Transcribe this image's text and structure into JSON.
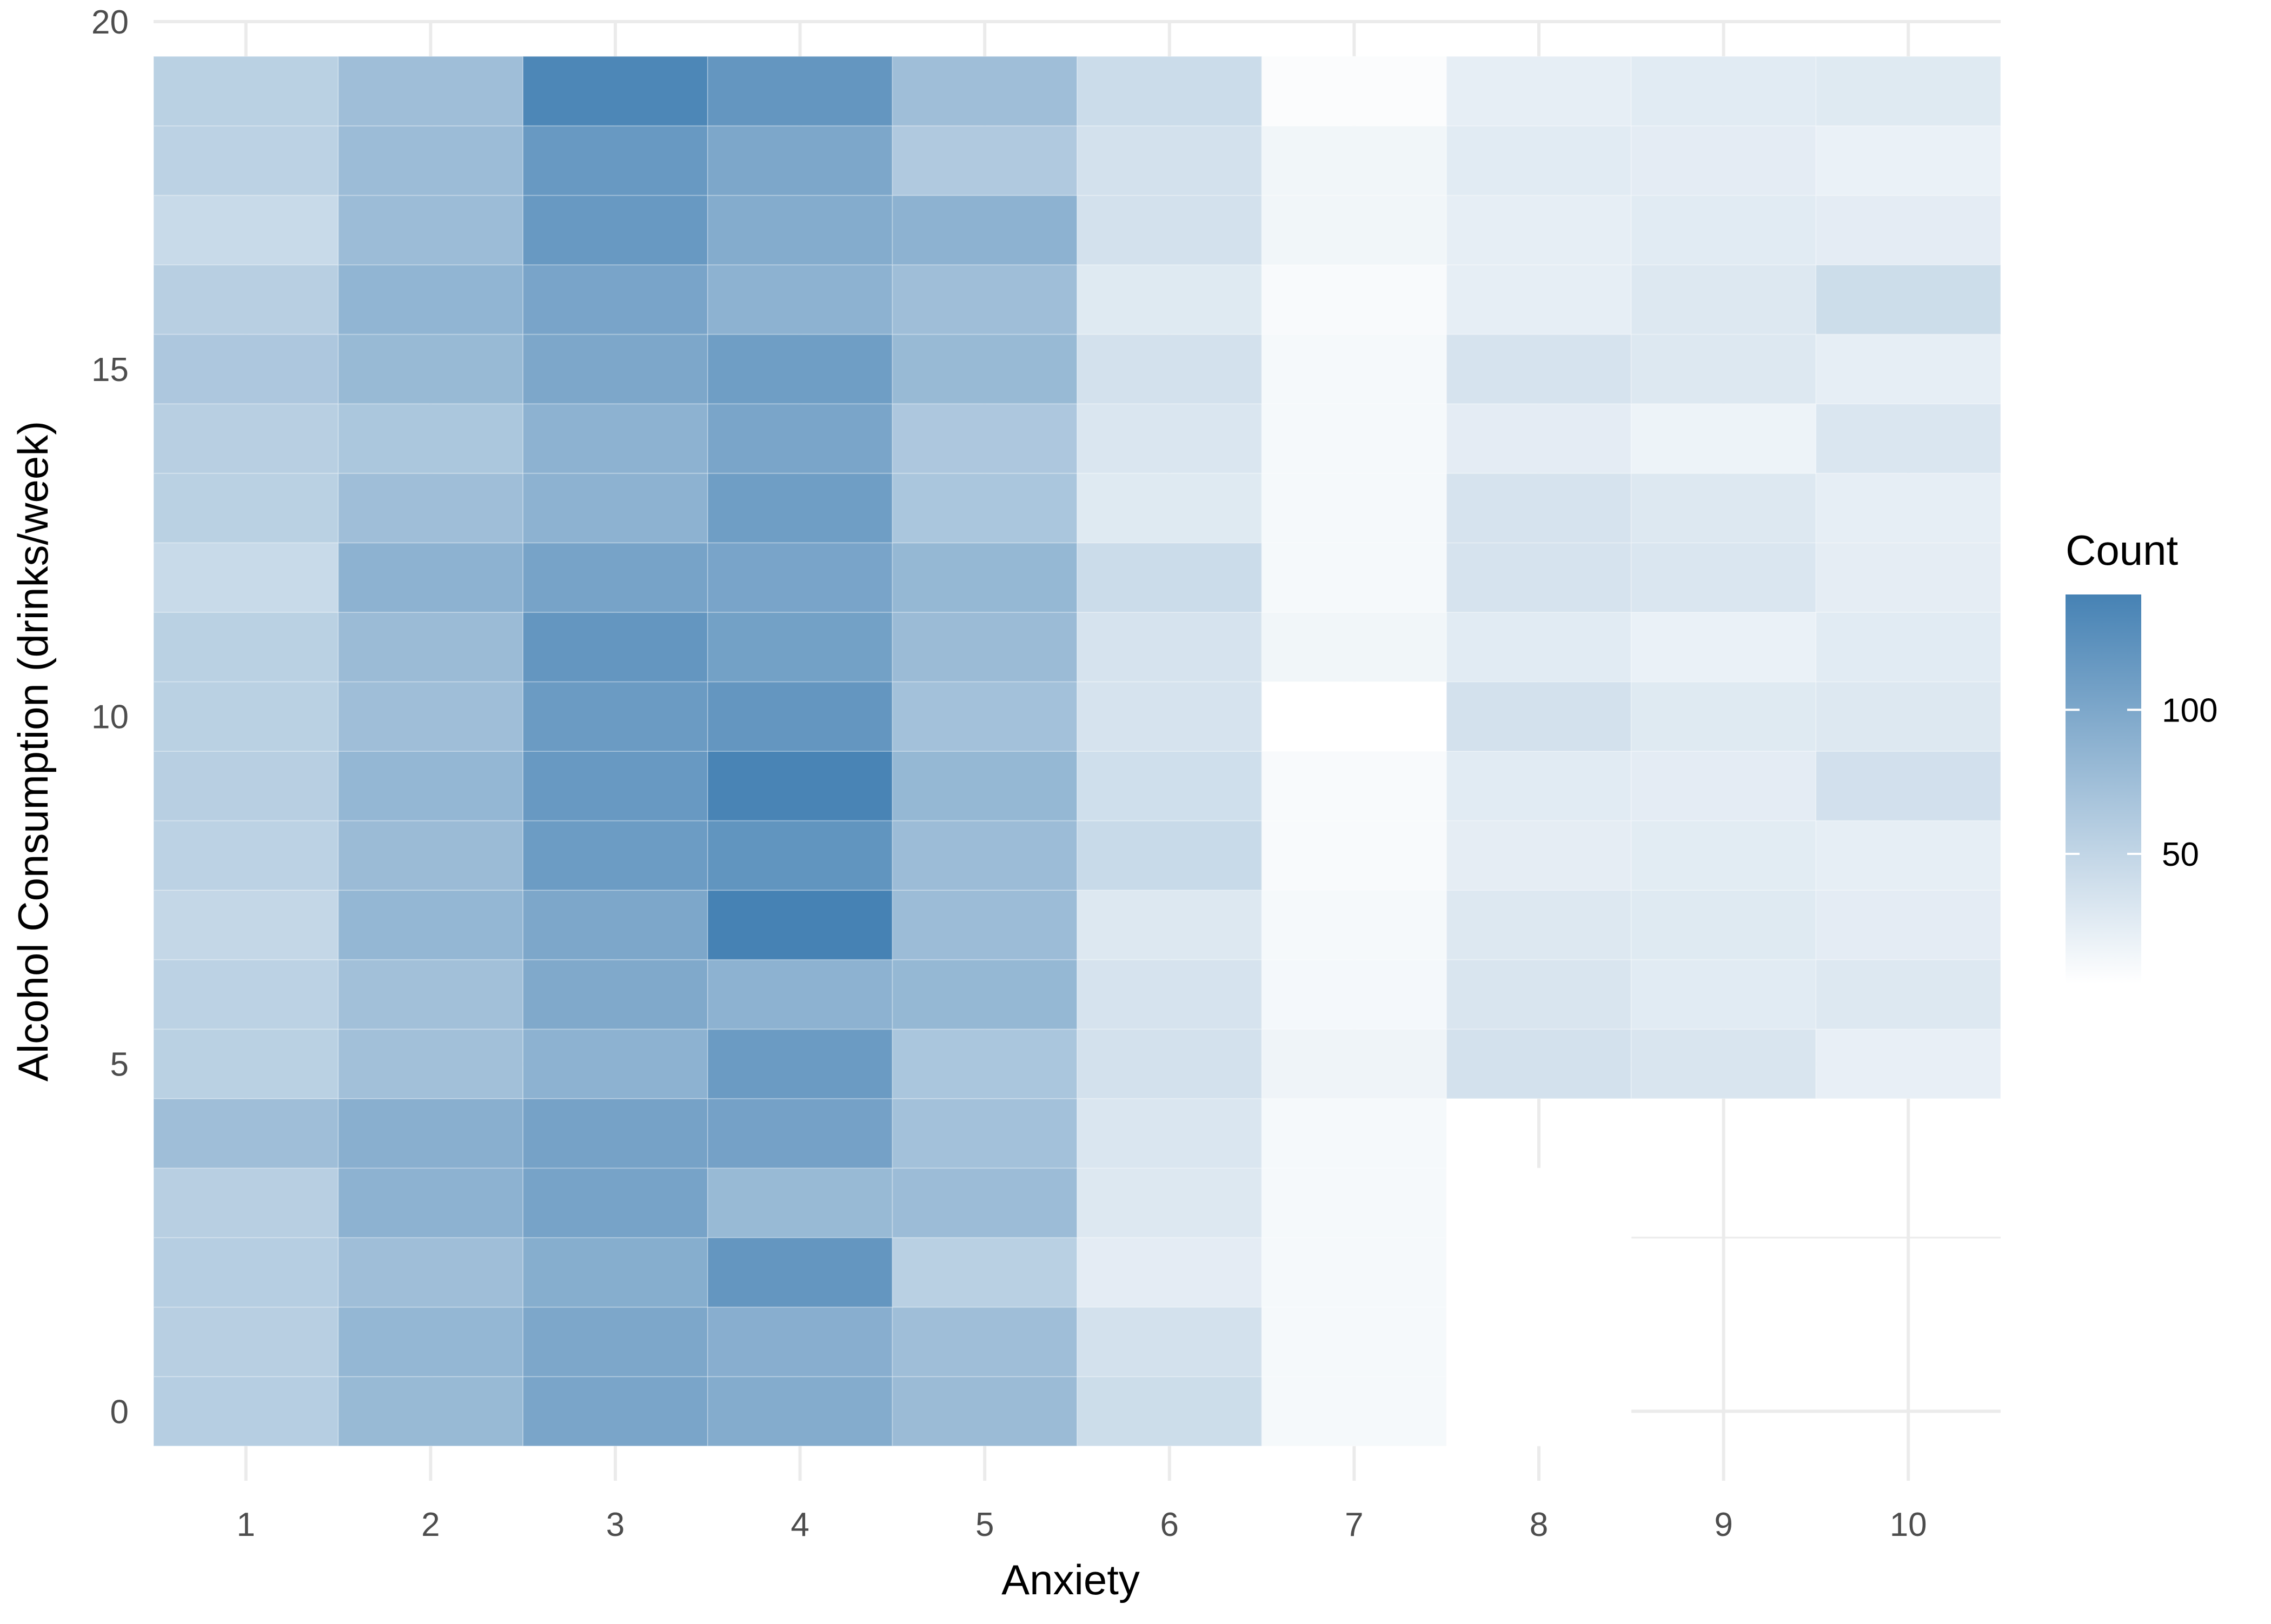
{
  "chart_data": {
    "type": "heatmap",
    "title": "",
    "xlabel": "Anxiety",
    "ylabel": "Alcohol Consumption (drinks/week)",
    "x_ticks": [
      "1",
      "2",
      "3",
      "4",
      "5",
      "6",
      "7",
      "8",
      "9",
      "10"
    ],
    "y_ticks": [
      "0",
      "5",
      "10",
      "15",
      "20"
    ],
    "x_categories": [
      1,
      2,
      3,
      4,
      5,
      6,
      7,
      8,
      9,
      10
    ],
    "y_categories": [
      0,
      1,
      2,
      3,
      4,
      5,
      6,
      7,
      8,
      9,
      10,
      11,
      12,
      13,
      14,
      15,
      16,
      17,
      18,
      19
    ],
    "xlim": [
      0.5,
      10.5
    ],
    "ylim": [
      -1,
      20
    ],
    "grid": true,
    "legend": {
      "title": "Count",
      "position": "right",
      "ticks": [
        "50",
        "100"
      ],
      "tick_values": [
        50,
        100
      ],
      "range": [
        5,
        140
      ],
      "color_low": "#ffffff",
      "color_high": "#4682b4"
    },
    "values": [
      [
        58,
        80,
        102,
        95,
        78,
        42,
        12,
        5,
        null,
        null
      ],
      [
        57,
        83,
        100,
        92,
        75,
        37,
        12,
        5,
        null,
        null
      ],
      [
        58,
        75,
        93,
        118,
        56,
        25,
        12,
        5,
        null,
        null
      ],
      [
        57,
        88,
        104,
        80,
        77,
        30,
        12,
        5,
        null,
        null
      ],
      [
        75,
        91,
        105,
        106,
        72,
        32,
        12,
        null,
        null,
        null
      ],
      [
        55,
        73,
        88,
        113,
        67,
        37,
        17,
        37,
        33,
        22
      ],
      [
        54,
        73,
        98,
        88,
        82,
        35,
        13,
        33,
        27,
        30
      ],
      [
        48,
        83,
        100,
        140,
        77,
        30,
        12,
        30,
        28,
        25
      ],
      [
        54,
        78,
        112,
        120,
        77,
        45,
        10,
        24,
        26,
        23
      ],
      [
        57,
        83,
        115,
        138,
        82,
        40,
        10,
        27,
        25,
        38
      ],
      [
        55,
        75,
        113,
        118,
        72,
        35,
        5,
        37,
        28,
        30
      ],
      [
        55,
        78,
        118,
        107,
        78,
        35,
        15,
        27,
        20,
        27
      ],
      [
        45,
        88,
        104,
        103,
        82,
        43,
        12,
        35,
        32,
        24
      ],
      [
        55,
        75,
        88,
        110,
        67,
        28,
        12,
        35,
        30,
        23
      ],
      [
        57,
        66,
        88,
        102,
        65,
        32,
        12,
        25,
        18,
        32
      ],
      [
        65,
        80,
        100,
        110,
        80,
        37,
        12,
        35,
        30,
        23
      ],
      [
        57,
        85,
        103,
        88,
        75,
        28,
        10,
        23,
        30,
        42
      ],
      [
        45,
        77,
        115,
        95,
        88,
        37,
        15,
        23,
        27,
        25
      ],
      [
        54,
        77,
        115,
        100,
        63,
        37,
        15,
        27,
        25,
        20
      ],
      [
        55,
        75,
        135,
        118,
        75,
        43,
        8,
        23,
        27,
        28
      ]
    ]
  }
}
